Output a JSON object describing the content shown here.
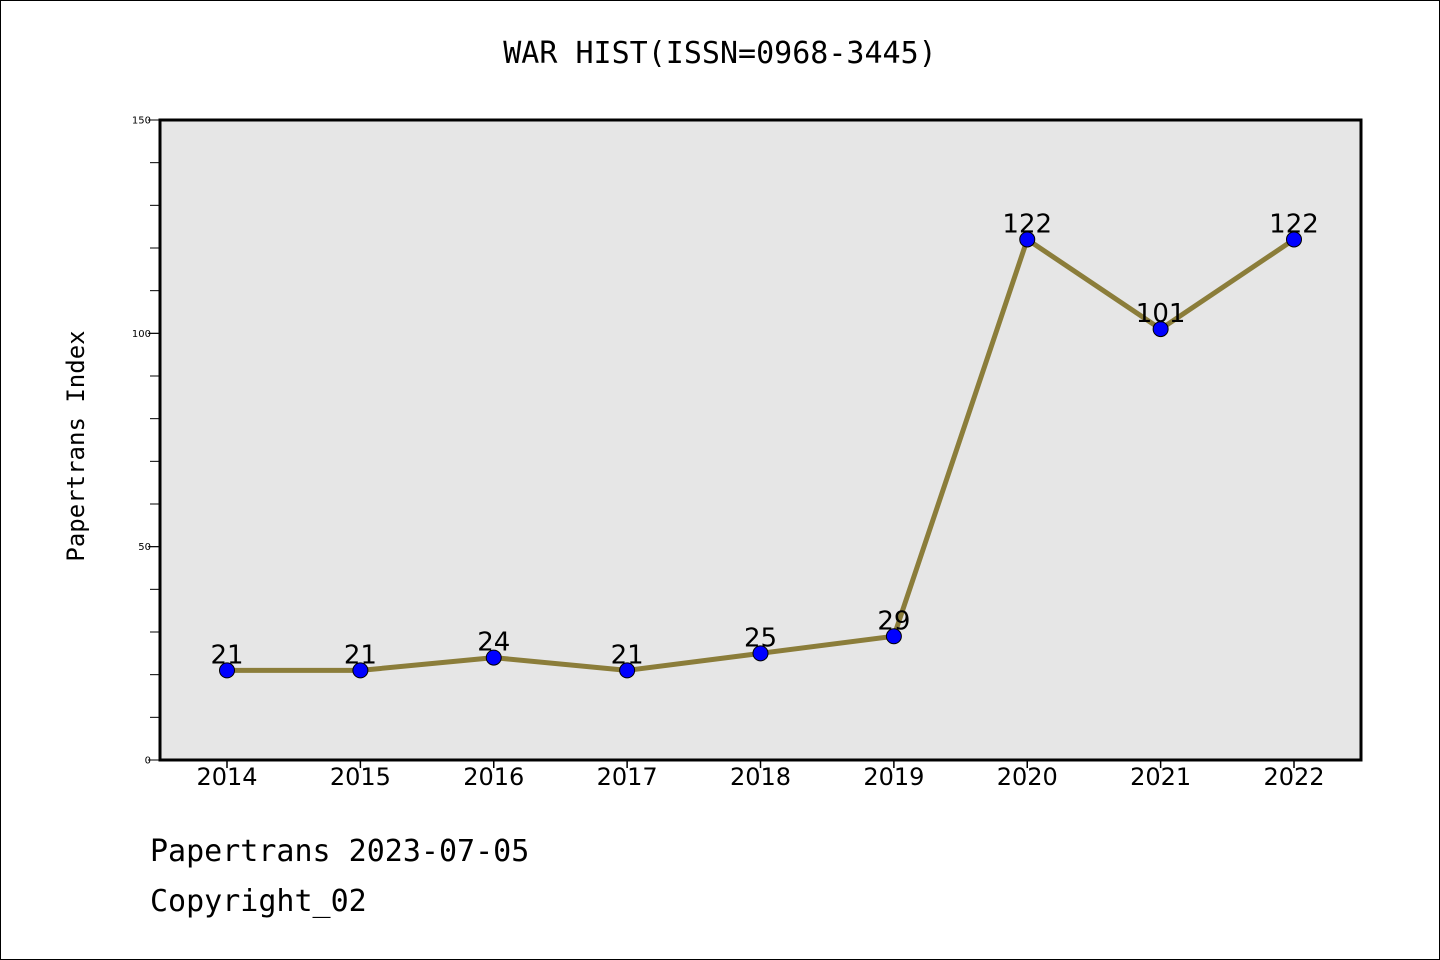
{
  "chart_data": {
    "type": "line",
    "title": "WAR HIST(ISSN=0968-3445)",
    "xlabel": "",
    "ylabel": "Papertrans Index",
    "categories": [
      "2014",
      "2015",
      "2016",
      "2017",
      "2018",
      "2019",
      "2020",
      "2021",
      "2022"
    ],
    "series": [
      {
        "values": [
          21,
          21,
          24,
          21,
          25,
          29,
          122,
          101,
          122
        ],
        "line_color": "#8b7d3a",
        "marker_color": "#0000ff"
      }
    ],
    "data_labels": [
      "21",
      "21",
      "24",
      "21",
      "25",
      "29",
      "122",
      "101",
      "122"
    ],
    "ylim": [
      0,
      150
    ],
    "yticks": [
      0,
      50,
      100,
      150
    ],
    "yticks_minor_step": 10,
    "grid": false,
    "plot_background": "#e6e6e6",
    "legend": "none"
  },
  "footer": {
    "date_text": "Papertrans 2023-07-05",
    "copyright_text": "Copyright_02"
  }
}
